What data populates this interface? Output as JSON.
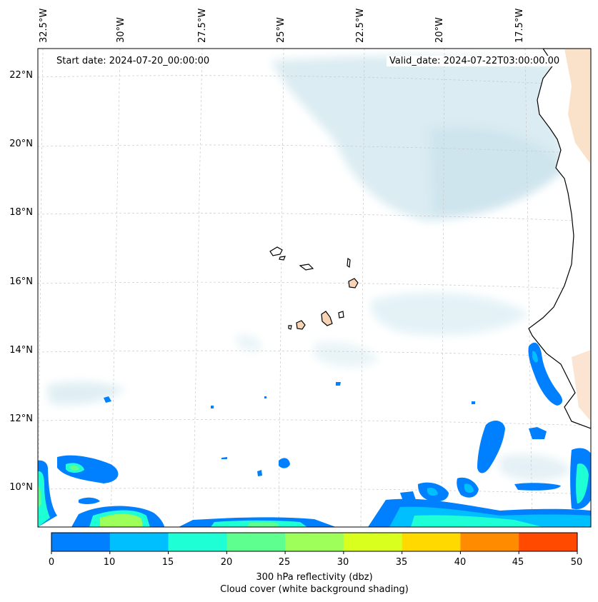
{
  "map": {
    "lon_labels": [
      "32.5°W",
      "30°W",
      "27.5°W",
      "25°W",
      "22.5°W",
      "20°W",
      "17.5°W"
    ],
    "lat_labels": [
      "22°N",
      "20°N",
      "18°N",
      "16°N",
      "14°N",
      "12°N",
      "10°N"
    ],
    "start_date": "Start date: 2024-07-20_00:00:00",
    "valid_date": "Valid_date: 2024-07-22T03:00:00.00"
  },
  "colorbar": {
    "ticks": [
      "0",
      "10",
      "15",
      "20",
      "25",
      "30",
      "35",
      "40",
      "45",
      "50"
    ],
    "colors": [
      "#0080ff",
      "#00bfff",
      "#1fffd5",
      "#5fff8f",
      "#9fff5a",
      "#d9ff1f",
      "#ffd900",
      "#ff8c00",
      "#ff4a00"
    ],
    "label_line1": "300 hPa reflectivity (dbz)",
    "label_line2": "Cloud cover (white background shading)"
  },
  "colors": {
    "land": "#f8d4b4",
    "cloud": "#cfe6ee",
    "grid": "#c8c8c8"
  }
}
